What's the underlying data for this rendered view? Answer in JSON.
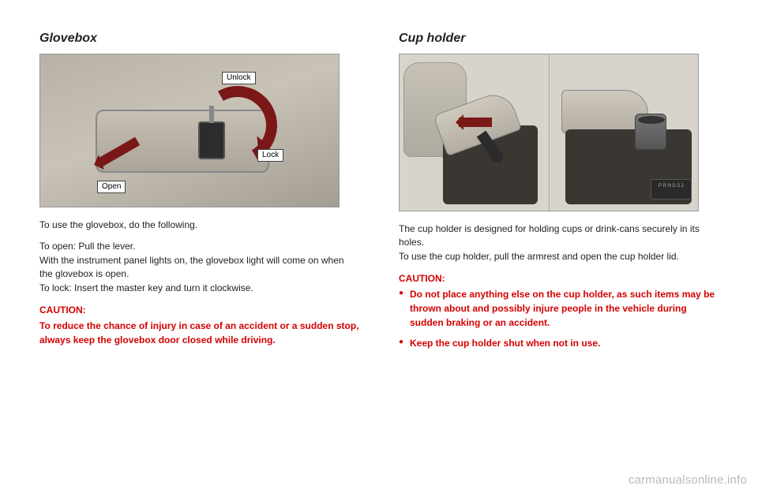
{
  "left": {
    "heading": "Glovebox",
    "figure": {
      "labels": {
        "unlock": "Unlock",
        "lock": "Lock",
        "open": "Open"
      },
      "arc_color": "#7a1818",
      "bg": "#d8d4cc"
    },
    "body1": "To use the glovebox, do the following.",
    "body2": "To open: Pull the lever.\nWith the instrument panel lights on, the glovebox light will come on when the glovebox is open.\nTo lock: Insert the master key and turn it clockwise.",
    "caution_title": "CAUTION:",
    "caution_text": "To reduce the chance of injury in case of an accident or a sudden stop, always keep the glovebox door closed while driving."
  },
  "right": {
    "heading": "Cup holder",
    "figure": {
      "bg": "#d8d4cc",
      "arrow_color": "#7a1818",
      "shifter_text": "P R N D 3 2"
    },
    "body": "The cup holder is designed for holding cups or drink-cans securely in its holes.\nTo use the cup holder, pull the armrest and open the cup holder lid.",
    "caution_title": "CAUTION:",
    "caution_items": [
      "Do not place anything else on the cup holder, as such items may be thrown about and possibly injure people in the vehicle during sudden braking or an accident.",
      "Keep the cup holder shut when not in use."
    ]
  },
  "watermark": "carmanualsonline.info",
  "colors": {
    "caution": "#d40000",
    "text": "#222222"
  }
}
